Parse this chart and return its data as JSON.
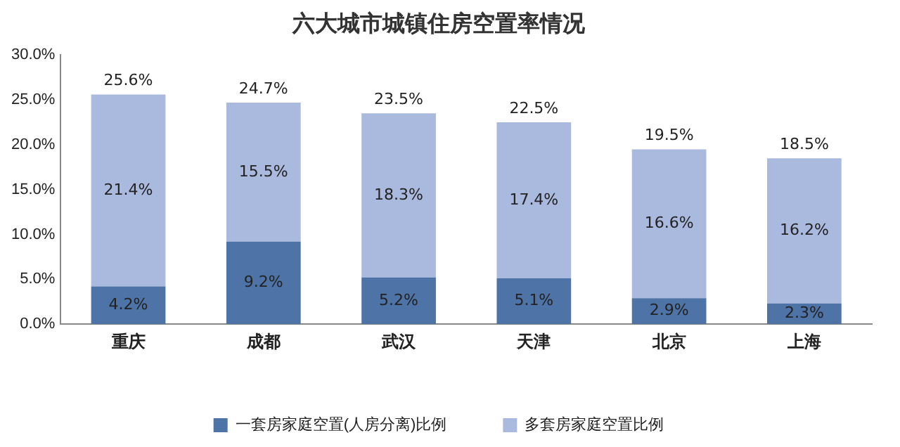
{
  "chart_data": {
    "type": "bar",
    "title": "六大城市城镇住房空置率情况",
    "categories": [
      "重庆",
      "成都",
      "武汉",
      "天津",
      "北京",
      "上海"
    ],
    "stacked": true,
    "series": [
      {
        "name": "一套房家庭空置(人房分离)比例",
        "color": "#4e73a6",
        "values": [
          4.2,
          9.2,
          5.2,
          5.1,
          2.9,
          2.3
        ],
        "value_labels": [
          "4.2%",
          "9.2%",
          "5.2%",
          "5.1%",
          "2.9%",
          "2.3%"
        ]
      },
      {
        "name": "多套房家庭空置比例",
        "color": "#aab9de",
        "values": [
          21.4,
          15.5,
          18.3,
          17.4,
          16.6,
          16.2
        ],
        "value_labels": [
          "21.4%",
          "15.5%",
          "18.3%",
          "17.4%",
          "16.6%",
          "16.2%"
        ]
      }
    ],
    "totals": [
      "25.6%",
      "24.7%",
      "23.5%",
      "22.5%",
      "19.5%",
      "18.5%"
    ],
    "ylim": [
      0,
      30
    ],
    "yticks": [
      {
        "value": 0,
        "label": "0.0%"
      },
      {
        "value": 5,
        "label": "5.0%"
      },
      {
        "value": 10,
        "label": "10.0%"
      },
      {
        "value": 15,
        "label": "15.0%"
      },
      {
        "value": 20,
        "label": "20.0%"
      },
      {
        "value": 25,
        "label": "25.0%"
      },
      {
        "value": 30,
        "label": "30.0%"
      }
    ],
    "grid": false,
    "legend": "bottom"
  }
}
